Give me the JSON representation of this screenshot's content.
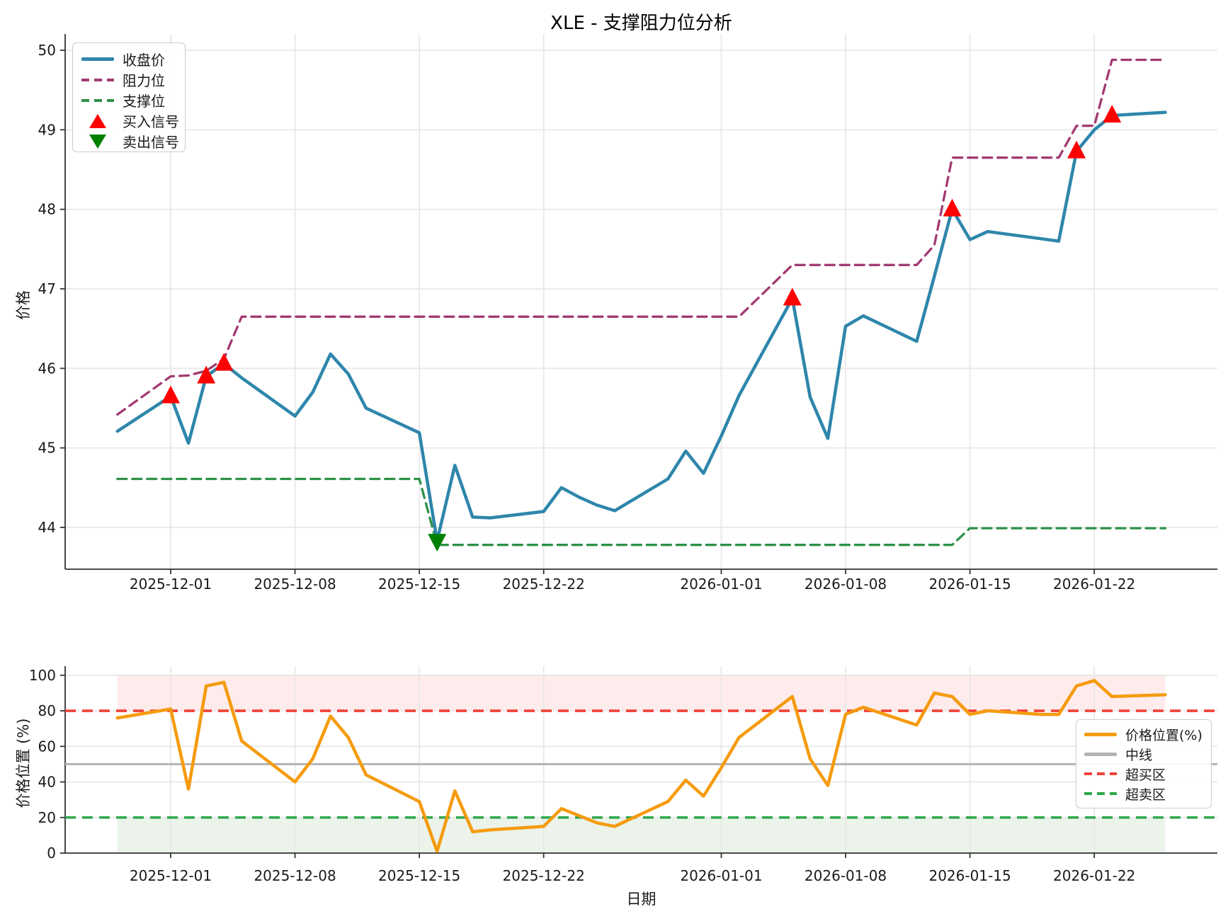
{
  "title": "XLE - 支撑阻力位分析",
  "colors": {
    "close": "#2E86AB",
    "resistance": "#A23B72",
    "support": "#2E9148",
    "buy_signal": "#FF0000",
    "sell_signal": "#008000",
    "position": "#F59B0E",
    "overbought": "#F04138",
    "oversold": "#2FA84C",
    "midline": "#B3B3B3",
    "overbought_band": "rgba(248,100,100,0.13)",
    "oversold_band": "rgba(90,160,90,0.12)",
    "grid": "#e7e7e7",
    "spine": "#333333"
  },
  "top_chart": {
    "ylabel": "价格",
    "yticks": [
      "44",
      "45",
      "46",
      "47",
      "48",
      "49",
      "50"
    ],
    "legend": [
      {
        "label": "收盘价",
        "swatch": "line",
        "color": "#2E86AB"
      },
      {
        "label": "阻力位",
        "swatch": "dash",
        "color": "#A23B72"
      },
      {
        "label": "支撑位",
        "swatch": "dash",
        "color": "#2E9148"
      },
      {
        "label": "买入信号",
        "swatch": "triangle-up",
        "color": "#FF0000"
      },
      {
        "label": "卖出信号",
        "swatch": "triangle-down",
        "color": "#008000"
      }
    ]
  },
  "bottom_chart": {
    "ylabel": "价格位置 (%)",
    "xlabel": "日期",
    "yticks": [
      "0",
      "20",
      "40",
      "60",
      "80",
      "100"
    ],
    "legend": [
      {
        "label": "价格位置(%)",
        "swatch": "line",
        "color": "#F59B0E"
      },
      {
        "label": "中线",
        "swatch": "line",
        "color": "#B3B3B3"
      },
      {
        "label": "超买区",
        "swatch": "dash",
        "color": "#F04138"
      },
      {
        "label": "超卖区",
        "swatch": "dash",
        "color": "#2FA84C"
      }
    ]
  },
  "chart_data": [
    {
      "type": "line",
      "panel": "price",
      "title": "XLE - 支撑阻力位分析",
      "ylabel": "价格",
      "ylim": [
        43.45,
        50.2
      ],
      "xticks": [
        "2025-12-01",
        "2025-12-08",
        "2025-12-15",
        "2025-12-22",
        "2026-01-01",
        "2026-01-08",
        "2026-01-15",
        "2026-01-22"
      ],
      "x": [
        "2025-11-28",
        "2025-12-01",
        "2025-12-02",
        "2025-12-03",
        "2025-12-04",
        "2025-12-05",
        "2025-12-08",
        "2025-12-09",
        "2025-12-10",
        "2025-12-11",
        "2025-12-12",
        "2025-12-15",
        "2025-12-16",
        "2025-12-17",
        "2025-12-18",
        "2025-12-19",
        "2025-12-22",
        "2025-12-23",
        "2025-12-24",
        "2025-12-25",
        "2025-12-26",
        "2025-12-29",
        "2025-12-30",
        "2025-12-31",
        "2026-01-01",
        "2026-01-02",
        "2026-01-05",
        "2026-01-06",
        "2026-01-07",
        "2026-01-08",
        "2026-01-09",
        "2026-01-12",
        "2026-01-13",
        "2026-01-14",
        "2026-01-15",
        "2026-01-16",
        "2026-01-19",
        "2026-01-20",
        "2026-01-21",
        "2026-01-22",
        "2026-01-23",
        "2026-01-26"
      ],
      "series": [
        {
          "name": "收盘价",
          "values": [
            45.21,
            45.65,
            45.06,
            45.9,
            46.06,
            45.88,
            45.4,
            45.7,
            46.18,
            45.93,
            45.5,
            45.19,
            43.83,
            44.78,
            44.13,
            44.12,
            44.2,
            44.5,
            44.38,
            44.28,
            44.21,
            44.61,
            44.96,
            44.68,
            45.15,
            45.66,
            46.88,
            45.64,
            45.12,
            46.53,
            46.66,
            46.34,
            47.16,
            48.0,
            47.62,
            47.72,
            47.63,
            47.6,
            48.73,
            49.0,
            49.18,
            49.22
          ]
        },
        {
          "name": "阻力位",
          "values": [
            45.42,
            45.9,
            45.91,
            45.97,
            46.12,
            46.65,
            46.65,
            46.65,
            46.65,
            46.65,
            46.65,
            46.65,
            46.65,
            46.65,
            46.65,
            46.65,
            46.65,
            46.65,
            46.65,
            46.65,
            46.65,
            46.65,
            46.65,
            46.65,
            46.65,
            46.65,
            47.3,
            47.3,
            47.3,
            47.3,
            47.3,
            47.3,
            47.55,
            48.65,
            48.65,
            48.65,
            48.65,
            48.65,
            49.05,
            49.05,
            49.88,
            49.88
          ]
        },
        {
          "name": "支撑位",
          "values": [
            44.61,
            44.61,
            44.61,
            44.61,
            44.61,
            44.61,
            44.61,
            44.61,
            44.61,
            44.61,
            44.61,
            44.61,
            43.78,
            43.78,
            43.78,
            43.78,
            43.78,
            43.78,
            43.78,
            43.78,
            43.78,
            43.78,
            43.78,
            43.78,
            43.78,
            43.78,
            43.78,
            43.78,
            43.78,
            43.78,
            43.78,
            43.78,
            43.78,
            43.78,
            43.99,
            43.99,
            43.99,
            43.99,
            43.99,
            43.99,
            43.99,
            43.99
          ]
        }
      ],
      "signals": {
        "buy": [
          {
            "date": "2025-12-01",
            "price": 45.65
          },
          {
            "date": "2025-12-03",
            "price": 45.9
          },
          {
            "date": "2025-12-04",
            "price": 46.06
          },
          {
            "date": "2026-01-05",
            "price": 46.88
          },
          {
            "date": "2026-01-14",
            "price": 48.0
          },
          {
            "date": "2026-01-21",
            "price": 48.73
          },
          {
            "date": "2026-01-23",
            "price": 49.18
          }
        ],
        "sell": [
          {
            "date": "2025-12-16",
            "price": 43.83
          }
        ]
      }
    },
    {
      "type": "line",
      "panel": "position",
      "ylabel": "价格位置 (%)",
      "xlabel": "日期",
      "ylim": [
        0,
        105
      ],
      "xticks": [
        "2025-12-01",
        "2025-12-08",
        "2025-12-15",
        "2025-12-22",
        "2026-01-01",
        "2026-01-08",
        "2026-01-15",
        "2026-01-22"
      ],
      "x": [
        "2025-11-28",
        "2025-12-01",
        "2025-12-02",
        "2025-12-03",
        "2025-12-04",
        "2025-12-05",
        "2025-12-08",
        "2025-12-09",
        "2025-12-10",
        "2025-12-11",
        "2025-12-12",
        "2025-12-15",
        "2025-12-16",
        "2025-12-17",
        "2025-12-18",
        "2025-12-19",
        "2025-12-22",
        "2025-12-23",
        "2025-12-24",
        "2025-12-25",
        "2025-12-26",
        "2025-12-29",
        "2025-12-30",
        "2025-12-31",
        "2026-01-01",
        "2026-01-02",
        "2026-01-05",
        "2026-01-06",
        "2026-01-07",
        "2026-01-08",
        "2026-01-09",
        "2026-01-12",
        "2026-01-13",
        "2026-01-14",
        "2026-01-15",
        "2026-01-16",
        "2026-01-19",
        "2026-01-20",
        "2026-01-21",
        "2026-01-22",
        "2026-01-23",
        "2026-01-26"
      ],
      "series": [
        {
          "name": "价格位置(%)",
          "values": [
            76,
            81,
            36,
            94,
            96,
            63,
            40,
            53,
            77,
            65,
            44,
            29,
            1,
            35,
            12,
            13,
            15,
            25,
            21,
            17,
            15,
            29,
            41,
            32,
            48,
            65,
            88,
            53,
            38,
            78,
            82,
            72,
            90,
            88,
            78,
            80,
            78,
            78,
            94,
            97,
            88,
            89
          ]
        }
      ],
      "reference_lines": {
        "midline": 50,
        "overbought": 80,
        "oversold": 20
      },
      "bands": [
        {
          "from": 80,
          "to": 100
        },
        {
          "from": 0,
          "to": 20
        }
      ]
    }
  ]
}
